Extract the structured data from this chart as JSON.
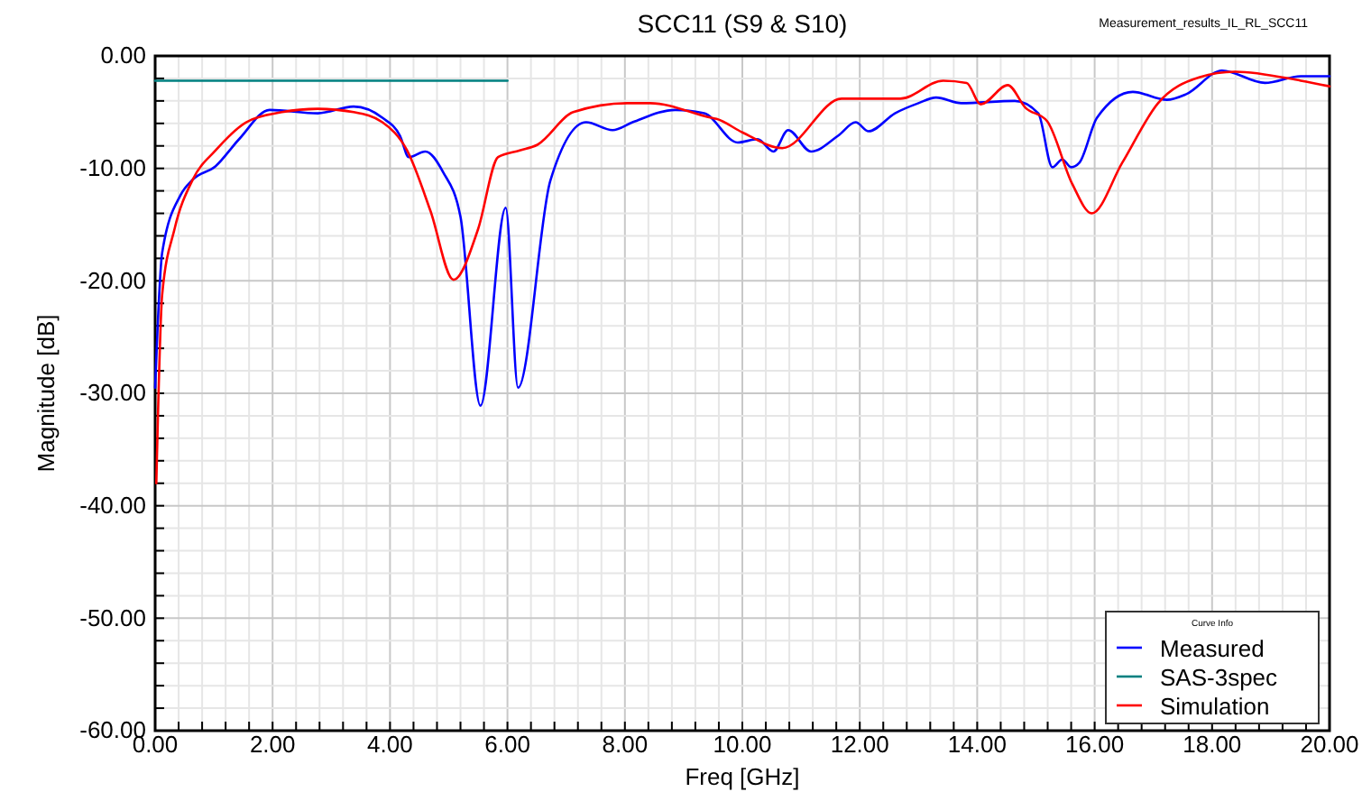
{
  "chart_data": {
    "type": "line",
    "title": "SCC11 (S9 & S10)",
    "xlabel": "Freq [GHz]",
    "ylabel": "Magnitude [dB]",
    "legend_title": "Curve Info",
    "annotations": [
      "Measurement_results_IL_RL_SCC11"
    ],
    "xlim": [
      0,
      20
    ],
    "ylim": [
      -60,
      0
    ],
    "xticks": [
      {
        "value": 0,
        "label": "0.00"
      },
      {
        "value": 0.4,
        "label": null
      },
      {
        "value": 0.8,
        "label": null
      },
      {
        "value": 1.2,
        "label": null
      },
      {
        "value": 1.6,
        "label": null
      },
      {
        "value": 2,
        "label": "2.00"
      },
      {
        "value": 2.4,
        "label": null
      },
      {
        "value": 2.8,
        "label": null
      },
      {
        "value": 3.2,
        "label": null
      },
      {
        "value": 3.6,
        "label": null
      },
      {
        "value": 4,
        "label": "4.00"
      },
      {
        "value": 4.4,
        "label": null
      },
      {
        "value": 4.8,
        "label": null
      },
      {
        "value": 5.2,
        "label": null
      },
      {
        "value": 5.6,
        "label": null
      },
      {
        "value": 6,
        "label": "6.00"
      },
      {
        "value": 6.4,
        "label": null
      },
      {
        "value": 6.8,
        "label": null
      },
      {
        "value": 7.2,
        "label": null
      },
      {
        "value": 7.6,
        "label": null
      },
      {
        "value": 8,
        "label": "8.00"
      },
      {
        "value": 8.4,
        "label": null
      },
      {
        "value": 8.8,
        "label": null
      },
      {
        "value": 9.2,
        "label": null
      },
      {
        "value": 9.6,
        "label": null
      },
      {
        "value": 10,
        "label": "10.00"
      },
      {
        "value": 10.4,
        "label": null
      },
      {
        "value": 10.8,
        "label": null
      },
      {
        "value": 11.2,
        "label": null
      },
      {
        "value": 11.6,
        "label": null
      },
      {
        "value": 12,
        "label": "12.00"
      },
      {
        "value": 12.4,
        "label": null
      },
      {
        "value": 12.8,
        "label": null
      },
      {
        "value": 13.2,
        "label": null
      },
      {
        "value": 13.6,
        "label": null
      },
      {
        "value": 14,
        "label": "14.00"
      },
      {
        "value": 14.4,
        "label": null
      },
      {
        "value": 14.8,
        "label": null
      },
      {
        "value": 15.2,
        "label": null
      },
      {
        "value": 15.6,
        "label": null
      },
      {
        "value": 16,
        "label": "16.00"
      },
      {
        "value": 16.4,
        "label": null
      },
      {
        "value": 16.8,
        "label": null
      },
      {
        "value": 17.2,
        "label": null
      },
      {
        "value": 17.6,
        "label": null
      },
      {
        "value": 18,
        "label": "18.00"
      },
      {
        "value": 18.4,
        "label": null
      },
      {
        "value": 18.8,
        "label": null
      },
      {
        "value": 19.2,
        "label": null
      },
      {
        "value": 19.6,
        "label": null
      },
      {
        "value": 20,
        "label": "20.00"
      }
    ],
    "yticks": [
      {
        "value": -60,
        "label": "-60.00"
      },
      {
        "value": -58,
        "label": null
      },
      {
        "value": -56,
        "label": null
      },
      {
        "value": -54,
        "label": null
      },
      {
        "value": -52,
        "label": null
      },
      {
        "value": -50,
        "label": "-50.00"
      },
      {
        "value": -48,
        "label": null
      },
      {
        "value": -46,
        "label": null
      },
      {
        "value": -44,
        "label": null
      },
      {
        "value": -42,
        "label": null
      },
      {
        "value": -40,
        "label": "-40.00"
      },
      {
        "value": -38,
        "label": null
      },
      {
        "value": -36,
        "label": null
      },
      {
        "value": -34,
        "label": null
      },
      {
        "value": -32,
        "label": null
      },
      {
        "value": -30,
        "label": "-30.00"
      },
      {
        "value": -28,
        "label": null
      },
      {
        "value": -26,
        "label": null
      },
      {
        "value": -24,
        "label": null
      },
      {
        "value": -22,
        "label": null
      },
      {
        "value": -20,
        "label": "-20.00"
      },
      {
        "value": -18,
        "label": null
      },
      {
        "value": -16,
        "label": null
      },
      {
        "value": -14,
        "label": null
      },
      {
        "value": -12,
        "label": null
      },
      {
        "value": -10,
        "label": "-10.00"
      },
      {
        "value": -8,
        "label": null
      },
      {
        "value": -6,
        "label": null
      },
      {
        "value": -4,
        "label": null
      },
      {
        "value": -2,
        "label": null
      },
      {
        "value": 0,
        "label": "0.00"
      }
    ],
    "grid": true,
    "legend": "bottom right",
    "marker": "none",
    "line_style": "solid",
    "series": [
      {
        "name": "Measured",
        "color": "#0000ff",
        "x": [
          0.0,
          0.12,
          0.43,
          0.64,
          1.03,
          1.43,
          1.95,
          2.77,
          3.38,
          3.87,
          4.17,
          4.32,
          4.6,
          4.9,
          5.2,
          5.54,
          5.97,
          6.18,
          6.73,
          7.34,
          7.79,
          8.13,
          8.86,
          9.35,
          9.92,
          10.26,
          10.53,
          10.78,
          11.17,
          11.63,
          11.93,
          12.15,
          12.6,
          13.0,
          13.3,
          13.73,
          14.64,
          15.04,
          15.28,
          15.45,
          15.6,
          15.74,
          16.04,
          16.65,
          17.23,
          17.56,
          18.17,
          18.9,
          19.51,
          20.0
        ],
        "values": [
          -29.5,
          -17.5,
          -12.4,
          -11,
          -9.8,
          -7.4,
          -4.8,
          -5.1,
          -4.5,
          -5.5,
          -7.1,
          -9.0,
          -8.5,
          -10.3,
          -14.3,
          -31.1,
          -13.5,
          -29.5,
          -11.1,
          -5.9,
          -6.6,
          -5.9,
          -4.8,
          -5.1,
          -7.7,
          -7.4,
          -8.5,
          -6.6,
          -8.5,
          -7.1,
          -5.9,
          -6.7,
          -5.1,
          -4.2,
          -3.7,
          -4.2,
          -4.0,
          -5.1,
          -9.9,
          -9.2,
          -9.9,
          -9.5,
          -5.5,
          -3.2,
          -3.9,
          -3.4,
          -1.3,
          -2.4,
          -1.8,
          -1.8
        ]
      },
      {
        "name": "SAS-3spec",
        "color": "#008080",
        "x": [
          0,
          6
        ],
        "values": [
          -2.2,
          -2.2
        ]
      },
      {
        "name": "Simulation",
        "color": "#ff0000",
        "x": [
          0.02,
          0.12,
          0.33,
          0.64,
          1.03,
          1.55,
          2.16,
          2.77,
          3.38,
          3.87,
          4.29,
          4.69,
          5.08,
          5.5,
          5.84,
          6.21,
          6.51,
          7.12,
          8.04,
          8.43,
          9.47,
          9.56,
          10.0,
          10.68,
          11.69,
          12.69,
          13.42,
          13.82,
          14.06,
          14.52,
          14.82,
          15.19,
          15.62,
          15.95,
          16.47,
          17.08,
          17.78,
          18.39,
          19.51,
          20.0
        ],
        "values": [
          -38,
          -21.2,
          -15.4,
          -11,
          -8.4,
          -5.9,
          -5.0,
          -4.7,
          -5.0,
          -5.9,
          -8.4,
          -13.8,
          -19.9,
          -15.4,
          -9.0,
          -8.4,
          -7.9,
          -5.0,
          -4.2,
          -4.2,
          -5.5,
          -5.6,
          -6.8,
          -8.2,
          -3.8,
          -3.8,
          -2.2,
          -2.4,
          -4.3,
          -2.6,
          -4.6,
          -5.8,
          -11.4,
          -14.0,
          -9.5,
          -4.2,
          -1.9,
          -1.4,
          -2.2,
          -2.7
        ]
      }
    ]
  }
}
